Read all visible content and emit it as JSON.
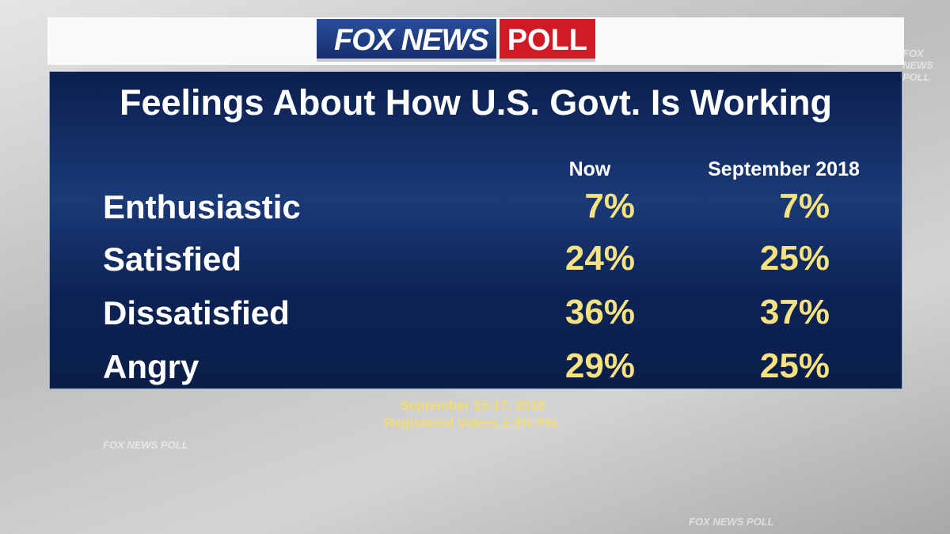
{
  "logo": {
    "brand": "FOX NEWS",
    "product": "POLL"
  },
  "watermark": "FOX NEWS POLL",
  "title": "Feelings About How U.S. Govt. Is Working",
  "table": {
    "columns": [
      "Now",
      "September 2018"
    ],
    "rows": [
      [
        "Enthusiastic",
        "7%",
        "7%"
      ],
      [
        "Satisfied",
        "24%",
        "25%"
      ],
      [
        "Dissatisfied",
        "36%",
        "37%"
      ],
      [
        "Angry",
        "29%",
        "25%"
      ]
    ]
  },
  "footer": [
    "September 15-17, 2019",
    "Registered Voters ± 3% Pts."
  ]
}
